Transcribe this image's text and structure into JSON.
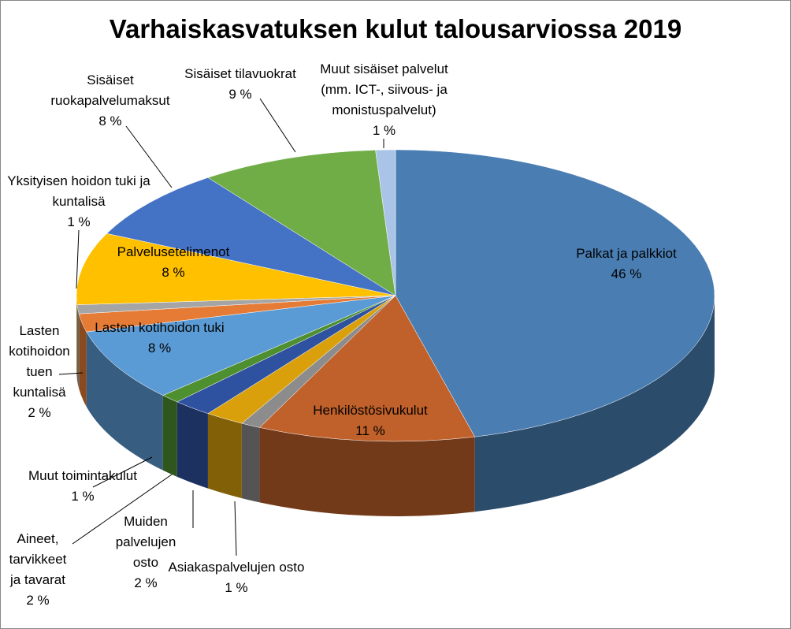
{
  "chart_data": {
    "type": "pie3d",
    "title": "Varhaiskasvatuksen kulut talousarviossa 2019",
    "categories": [
      "Palkat ja palkkiot",
      "Henkilöstösivukulut",
      "Asiakaspalvelujen osto",
      "Muiden palvelujen osto",
      "Aineet, tarvikkeet ja tavarat",
      "Muut toimintakulut",
      "Lasten kotihoidon tuki",
      "Lasten kotihoidon tuen kuntalisä",
      "Yksityisen hoidon tuki ja kuntalisä",
      "Palvelusetelimenot",
      "Sisäiset ruokapalvelumaksut",
      "Sisäiset tilavuokrat",
      "Muut sisäiset palvelut (mm. ICT-, siivous- ja monistuspalvelut)"
    ],
    "values": [
      46,
      11,
      1,
      2,
      2,
      1,
      8,
      2,
      1,
      8,
      8,
      9,
      1
    ],
    "value_labels": [
      "46 %",
      "11 %",
      "1 %",
      "2 %",
      "2 %",
      "1 %",
      "8 %",
      "2 %",
      "1 %",
      "8 %",
      "8 %",
      "9 %",
      "1 %"
    ],
    "colors": [
      "#4a7eb3",
      "#c0602a",
      "#8c8c8c",
      "#d9a00c",
      "#2e52a0",
      "#4e8f2f",
      "#5b9bd5",
      "#e57b35",
      "#a5a5a5",
      "#ffc000",
      "#4472c4",
      "#70ad47",
      "#a9c4e6"
    ]
  }
}
